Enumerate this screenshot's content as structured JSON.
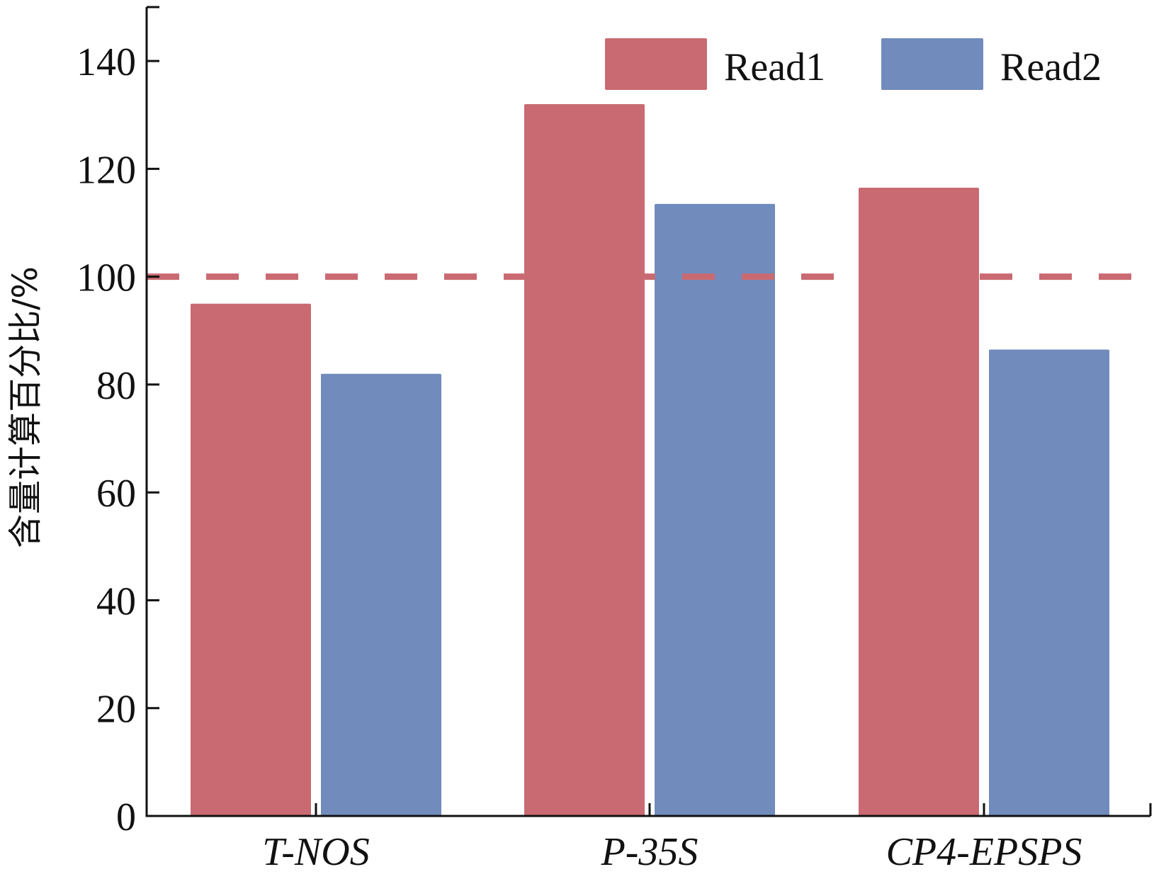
{
  "chart_data": {
    "type": "bar",
    "categories": [
      "T-NOS",
      "P-35S",
      "CP4-EPSPS"
    ],
    "series": [
      {
        "name": "Read1",
        "values": [
          95,
          132,
          116.5
        ],
        "color": "#c96a72"
      },
      {
        "name": "Read2",
        "values": [
          82,
          113.5,
          86.5
        ],
        "color": "#718bbc"
      }
    ],
    "xlabel": "",
    "ylabel": "含量计算百分比/%",
    "ylim": [
      0,
      150
    ],
    "yticks": [
      0,
      20,
      40,
      60,
      80,
      100,
      120,
      140
    ],
    "reference_line": {
      "value": 100,
      "style": "dashed",
      "color": "#c96a72"
    },
    "legend": "top-right",
    "grid": false
  }
}
